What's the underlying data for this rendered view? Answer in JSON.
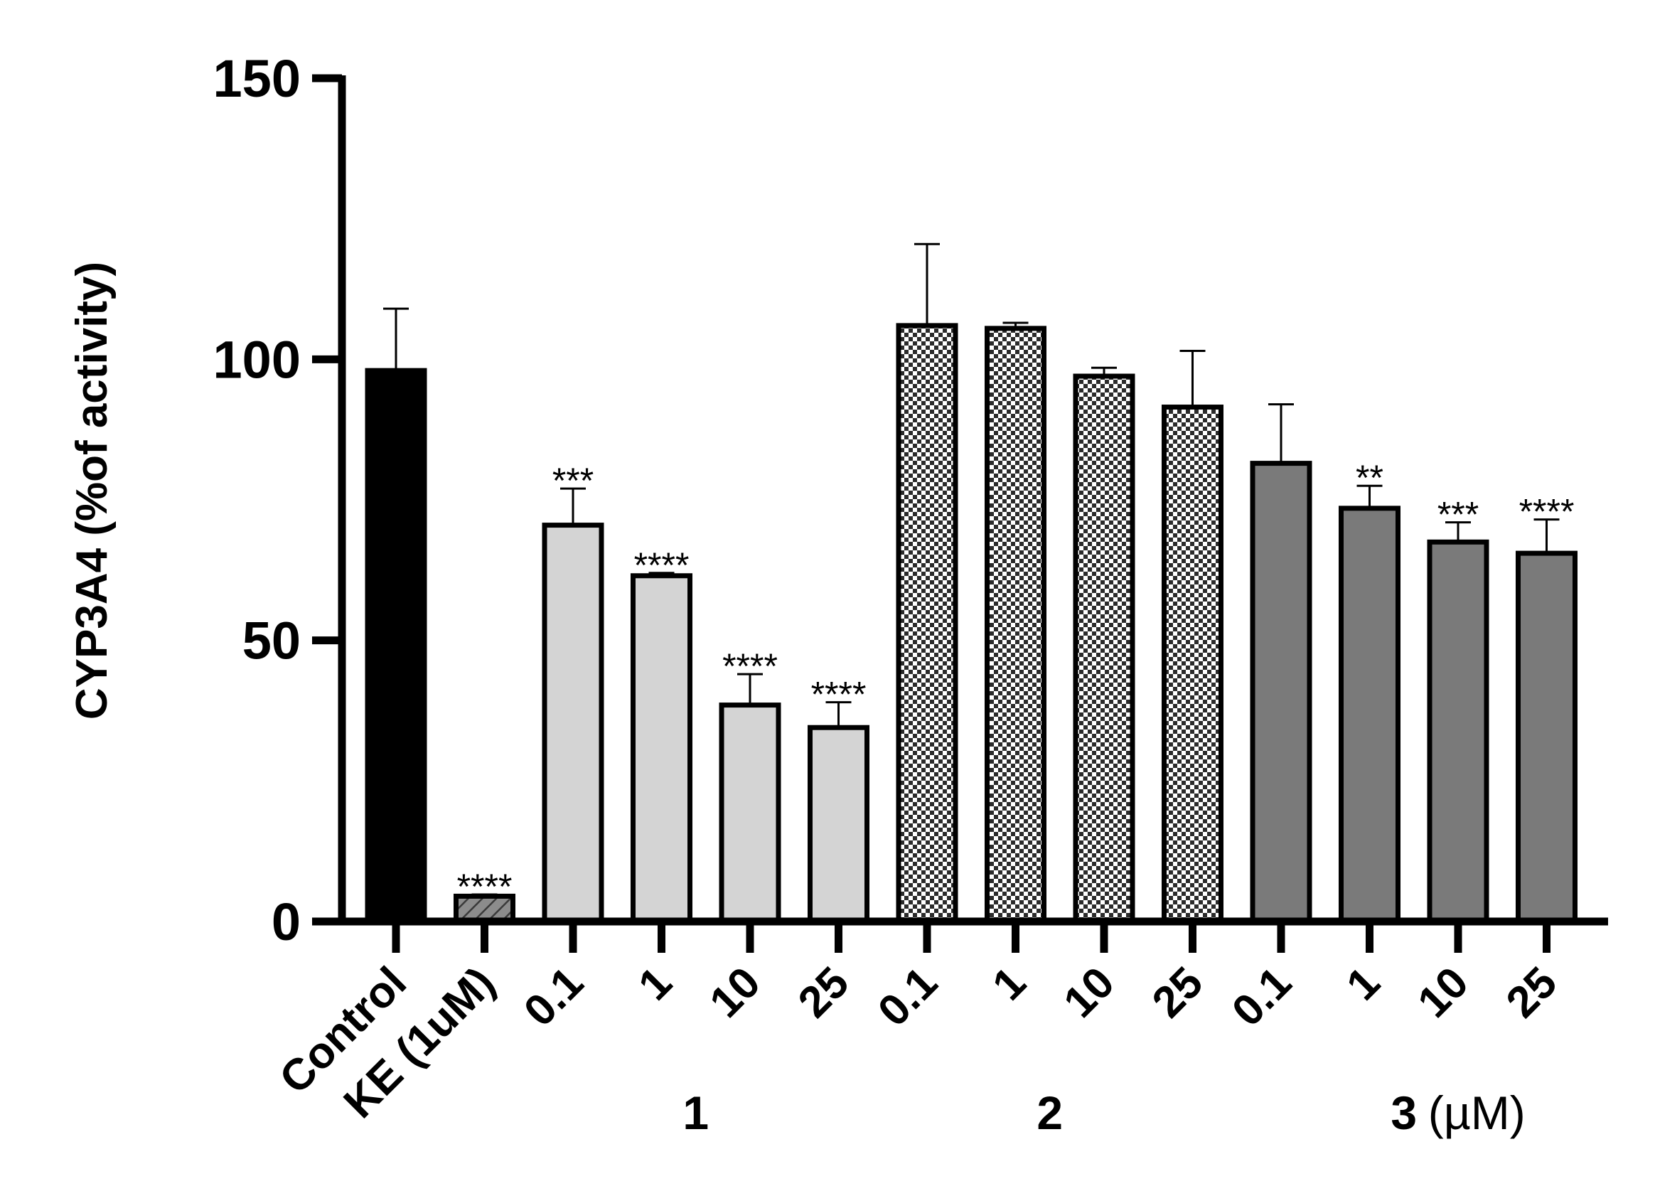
{
  "chart_data": {
    "type": "bar",
    "ylabel": "CYP3A4 (%of activity)",
    "ylim": [
      0,
      150
    ],
    "yticks": [
      0,
      50,
      100,
      150
    ],
    "grid": false,
    "unit_label": "(µM)",
    "categories": [
      "Control",
      "KE (1uM)",
      "0.1",
      "1",
      "10",
      "25",
      "0.1",
      "1",
      "10",
      "25",
      "0.1",
      "1",
      "10",
      "25"
    ],
    "values": [
      98,
      4.5,
      70.5,
      61.5,
      38.5,
      34.5,
      106,
      105.5,
      97,
      91.5,
      81.5,
      73.5,
      67.5,
      65.5
    ],
    "errors": [
      11,
      0.3,
      6.5,
      0.5,
      5.5,
      4.5,
      14.5,
      1,
      1.5,
      10,
      10.5,
      4,
      3.5,
      6
    ],
    "significance": [
      "",
      "****",
      "***",
      "****",
      "****",
      "****",
      "",
      "",
      "",
      "",
      "",
      "**",
      "***",
      "****"
    ],
    "bar_styles": [
      "solid-black",
      "hatched",
      "light-gray",
      "light-gray",
      "light-gray",
      "light-gray",
      "checkered",
      "checkered",
      "checkered",
      "checkered",
      "dark-gray",
      "dark-gray",
      "dark-gray",
      "dark-gray"
    ],
    "colors": {
      "control": "#000000",
      "ke": "#8c8c8c",
      "compound_1": "#d4d4d4",
      "compound_2": "#cccccc",
      "compound_3": "#7a7a7a"
    },
    "groups": [
      {
        "label": "1",
        "first": 2,
        "last": 5
      },
      {
        "label": "2",
        "first": 6,
        "last": 9
      },
      {
        "label": "3",
        "first": 10,
        "last": 13
      }
    ]
  }
}
